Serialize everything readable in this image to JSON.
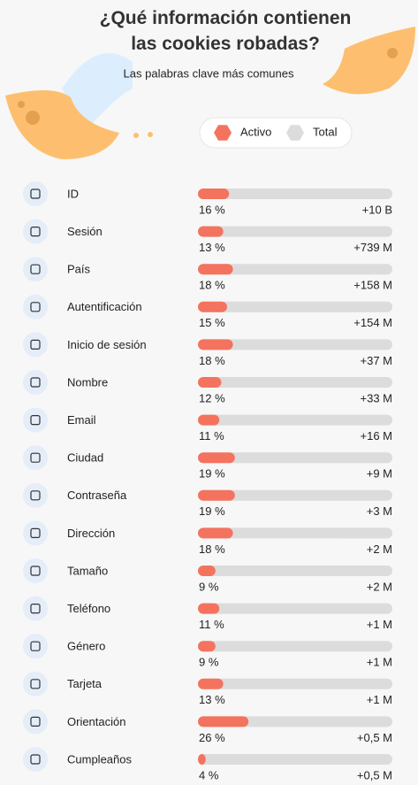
{
  "chart_data": {
    "type": "hbar",
    "title": "¿Qué información contienen las cookies robadas?",
    "subtitle": "Las palabras clave más comunes",
    "categories": [
      "ID",
      "Sesión",
      "País",
      "Autentificación",
      "Inicio de sesión",
      "Nombre",
      "Email",
      "Ciudad",
      "Contraseña",
      "Dirección",
      "Tamaño",
      "Teléfono",
      "Género",
      "Tarjeta",
      "Orientación",
      "Cumpleaños"
    ],
    "xlim": [
      0,
      100
    ],
    "series": [
      {
        "name": "Activo",
        "color": "#f4735f",
        "values": [
          16,
          13,
          18,
          15,
          18,
          12,
          11,
          19,
          19,
          18,
          9,
          11,
          9,
          13,
          26,
          4
        ],
        "value_labels": [
          "16 %",
          "13 %",
          "18 %",
          "15 %",
          "18 %",
          "12 %",
          "11 %",
          "19 %",
          "19 %",
          "18 %",
          "9 %",
          "11 %",
          "9 %",
          "13 %",
          "26 %",
          "4 %"
        ]
      },
      {
        "name": "Total",
        "color": "#dcdcdc",
        "values": [
          10000000000,
          739000000,
          158000000,
          154000000,
          37000000,
          33000000,
          16000000,
          9000000,
          3000000,
          2000000,
          2000000,
          1000000,
          1000000,
          1000000,
          500000,
          500000
        ],
        "value_labels": [
          "+10 B",
          "+739 M",
          "+158 M",
          "+154 M",
          "+37 M",
          "+33 M",
          "+16 M",
          "+9 M",
          "+3 M",
          "+2 M",
          "+2 M",
          "+1 M",
          "+1 M",
          "+1 M",
          "+0,5 M",
          "+0,5 M"
        ]
      }
    ]
  }
}
